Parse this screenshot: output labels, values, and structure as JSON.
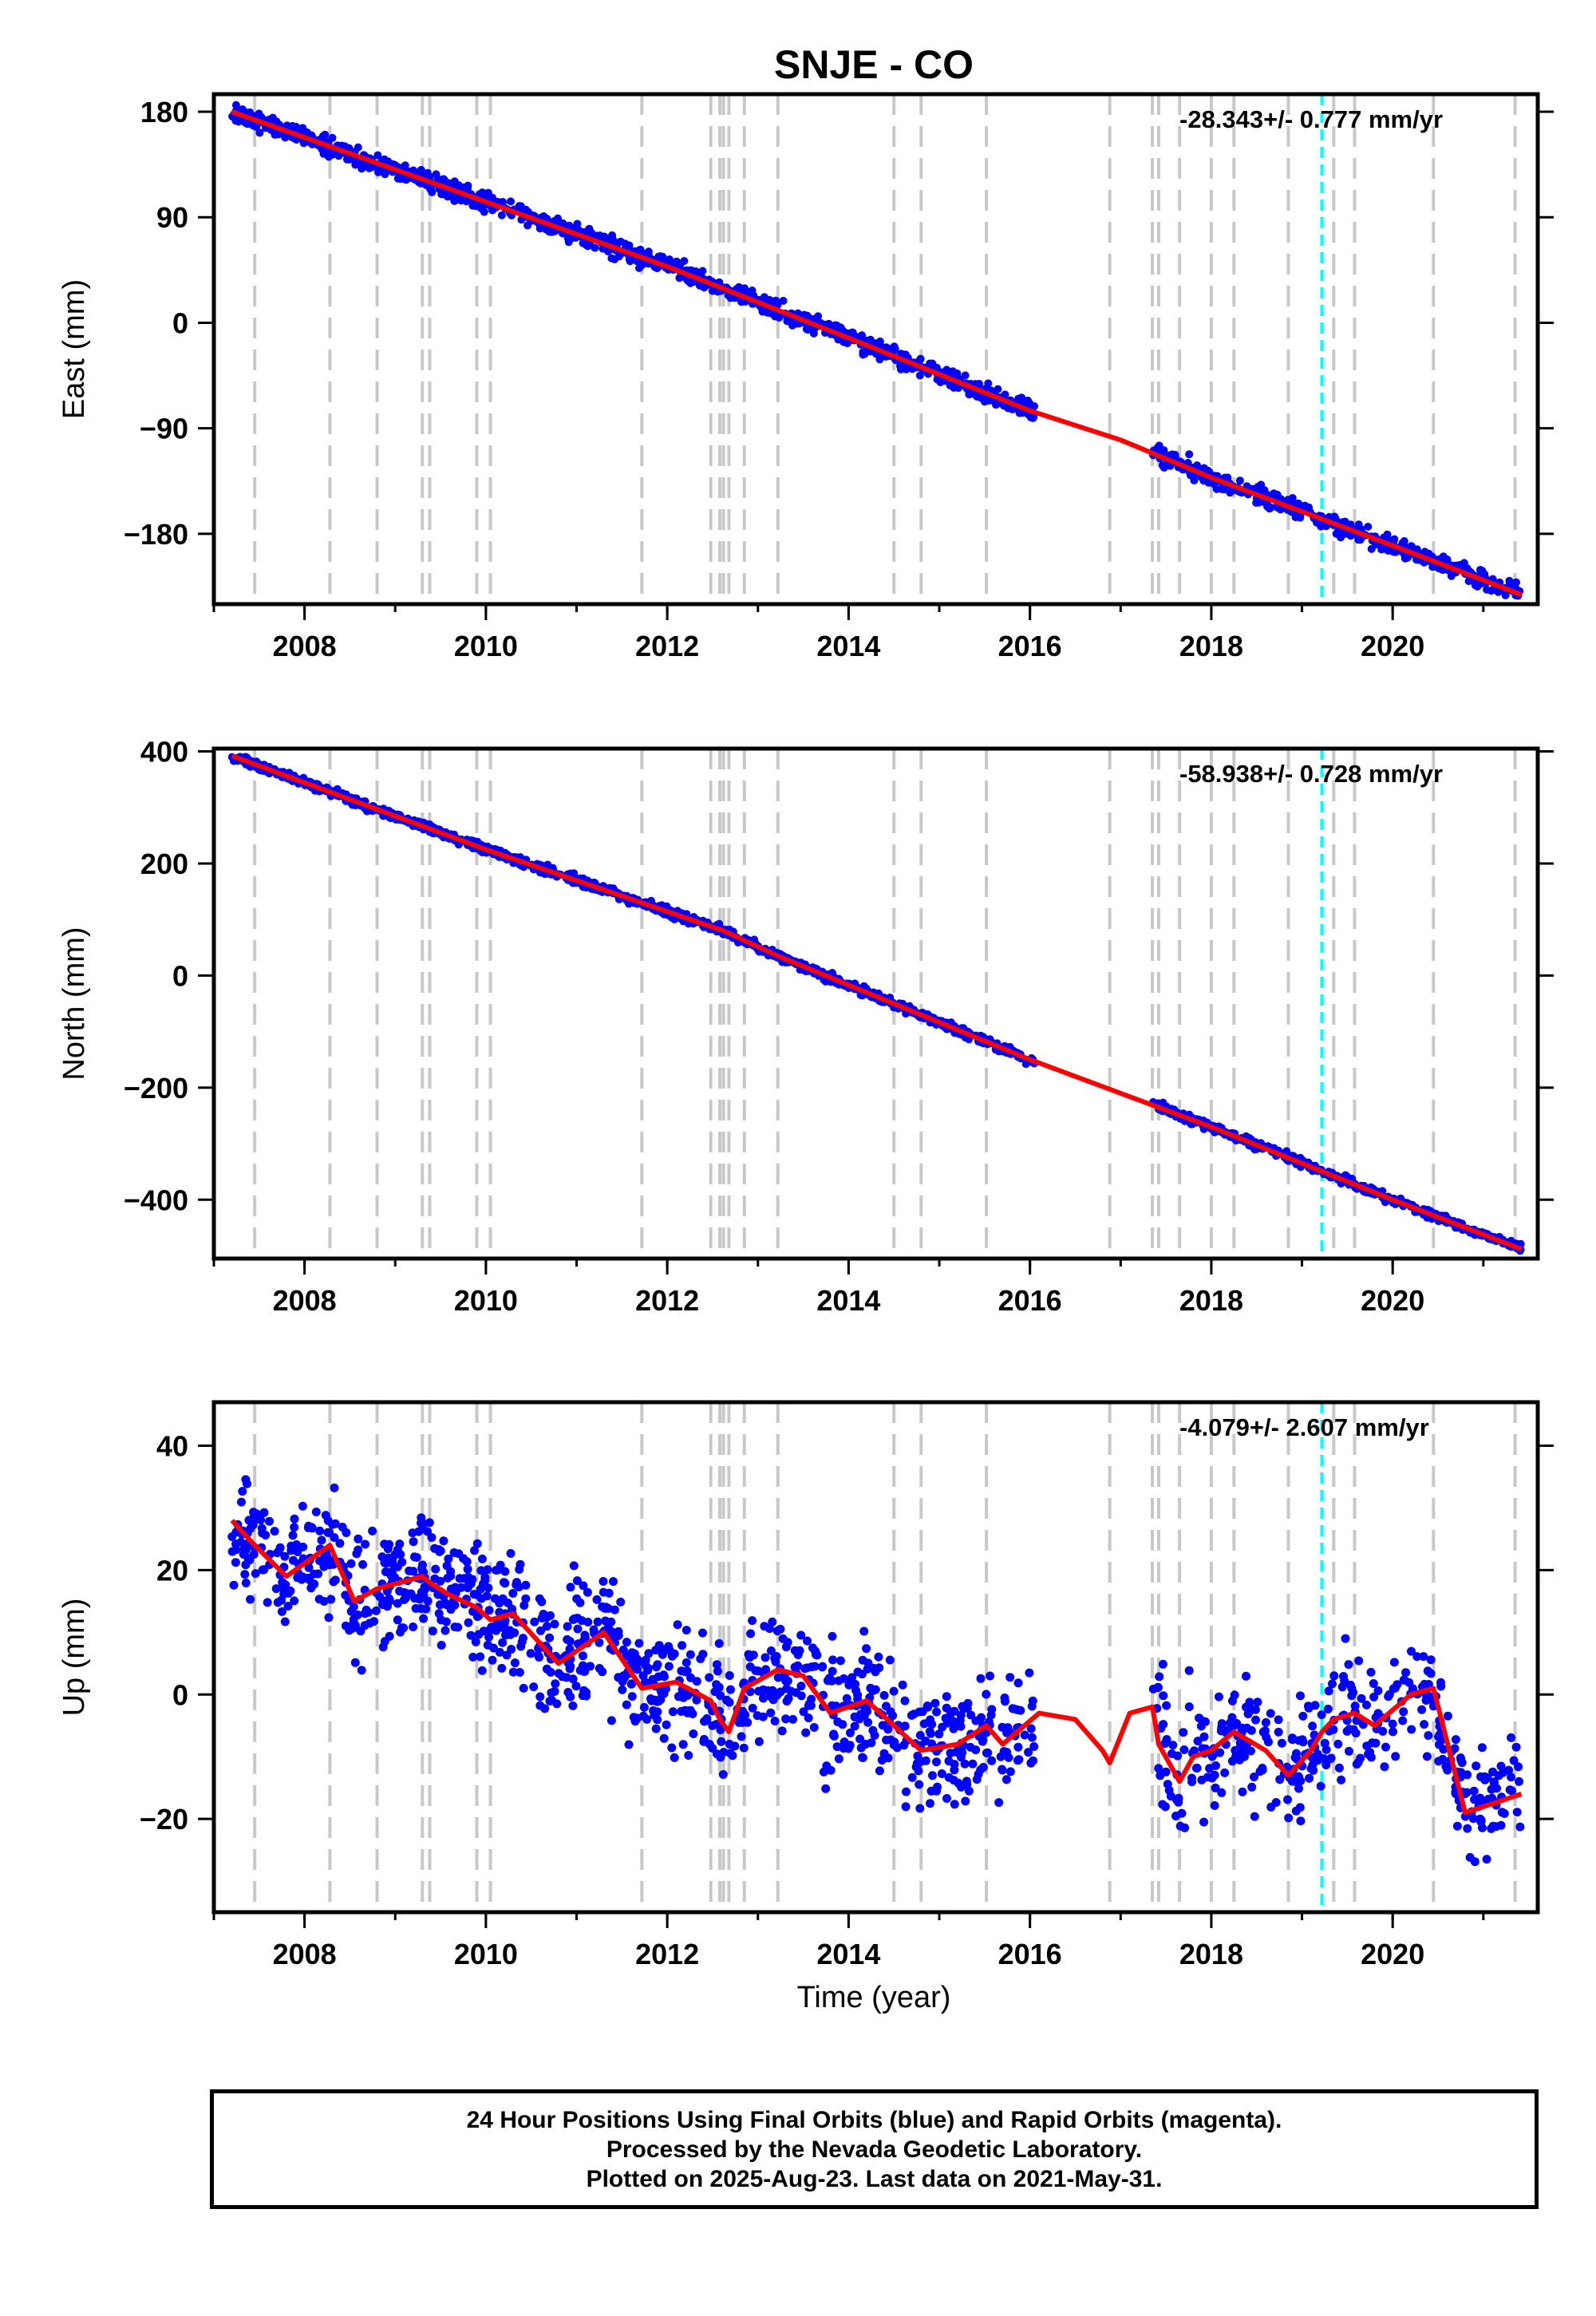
{
  "chart_data": {
    "title": "SNJE - CO",
    "xlabel": "Time (year)",
    "x_range": [
      2007.0,
      2021.6
    ],
    "x_ticks": [
      2008,
      2010,
      2012,
      2014,
      2016,
      2018,
      2020
    ],
    "x_tick_labels": [
      "2008",
      "2010",
      "2012",
      "2014",
      "2016",
      "2018",
      "2020"
    ],
    "series_colors": {
      "observations": "#0000ff",
      "model": "#ff0000",
      "gray_lines": "#c8c8c8",
      "cyan_line": "#00ffff"
    },
    "gray_dashed_lines": [
      2007.45,
      2008.28,
      2008.8,
      2009.3,
      2009.38,
      2009.9,
      2010.05,
      2011.72,
      2012.48,
      2012.58,
      2012.62,
      2012.68,
      2012.85,
      2013.22,
      2014.5,
      2014.8,
      2015.52,
      2016.88,
      2017.35,
      2017.42,
      2017.65,
      2018.0,
      2018.25,
      2018.85,
      2019.35,
      2019.58,
      2020.45,
      2021.35
    ],
    "cyan_dashed_line": 2019.22,
    "data_gap": [
      2016.05,
      2017.35
    ],
    "x_start": 2007.2,
    "x_end": 2021.42,
    "panels": [
      {
        "type": "scatter",
        "ylabel": "East (mm)",
        "ylim": [
          -240,
          195
        ],
        "y_ticks": [
          180,
          90,
          0,
          -90,
          -180
        ],
        "y_tick_labels": [
          "180",
          "90",
          "0",
          "−90",
          "−180"
        ],
        "rate_label": "-28.343+/- 0.777 mm/yr",
        "model_x": [
          2007.2,
          2009.5,
          2012.0,
          2014.0,
          2016.0,
          2017.0,
          2018.0,
          2020.0,
          2021.42
        ],
        "model_y": [
          180,
          117,
          48,
          -13,
          -75,
          -100,
          -132,
          -190,
          -232
        ],
        "noise_mm": 4
      },
      {
        "type": "scatter",
        "ylabel": "North (mm)",
        "ylim": [
          -505,
          405
        ],
        "y_ticks": [
          400,
          200,
          0,
          -200,
          -400
        ],
        "y_tick_labels": [
          "400",
          "200",
          "0",
          "−200",
          "−400"
        ],
        "rate_label": "-58.938+/- 0.728 mm/yr",
        "model_x": [
          2007.2,
          2010.0,
          2012.62,
          2013.22,
          2016.0,
          2017.0,
          2018.0,
          2020.0,
          2021.42
        ],
        "model_y": [
          392,
          225,
          80,
          35,
          -150,
          -210,
          -270,
          -400,
          -488
        ],
        "noise_mm": 4
      },
      {
        "type": "scatter",
        "ylabel": "Up (mm)",
        "ylim": [
          -35,
          47
        ],
        "y_ticks": [
          40,
          20,
          0,
          -20
        ],
        "y_tick_labels": [
          "40",
          "20",
          "0",
          "−20"
        ],
        "rate_label": "-4.079+/- 2.607 mm/yr",
        "model_x": [
          2007.2,
          2007.45,
          2007.8,
          2008.28,
          2008.55,
          2008.8,
          2009.3,
          2009.38,
          2009.6,
          2009.9,
          2010.05,
          2010.3,
          2010.8,
          2011.3,
          2011.72,
          2012.1,
          2012.48,
          2012.58,
          2012.68,
          2012.85,
          2013.22,
          2013.5,
          2013.8,
          2014.2,
          2014.5,
          2014.8,
          2015.2,
          2015.52,
          2015.7,
          2016.1,
          2016.5,
          2016.8,
          2016.88,
          2017.1,
          2017.35,
          2017.42,
          2017.65,
          2017.8,
          2018.0,
          2018.25,
          2018.6,
          2018.85,
          2019.1,
          2019.22,
          2019.35,
          2019.58,
          2019.8,
          2020.2,
          2020.45,
          2020.8,
          2021.42
        ],
        "model_y": [
          28,
          24,
          19,
          24,
          15,
          17,
          19,
          18,
          16,
          14,
          12,
          13,
          5,
          10,
          1,
          2,
          -1,
          -4,
          -6,
          1,
          4,
          3,
          -3,
          -1,
          -5,
          -9,
          -8,
          -5,
          -8,
          -3,
          -4,
          -9,
          -11,
          -3,
          -2,
          -8,
          -14,
          -10,
          -9,
          -6,
          -9,
          -13,
          -9,
          -6,
          -4,
          -3,
          -5,
          0,
          1,
          -19,
          -16
        ],
        "noise_mm": 5
      }
    ]
  },
  "footer": {
    "line1": "24 Hour Positions Using Final Orbits (blue) and Rapid Orbits (magenta).",
    "line2": "Processed by the Nevada Geodetic Laboratory.",
    "line3": "Plotted on 2025-Aug-23. Last data on 2021-May-31."
  }
}
